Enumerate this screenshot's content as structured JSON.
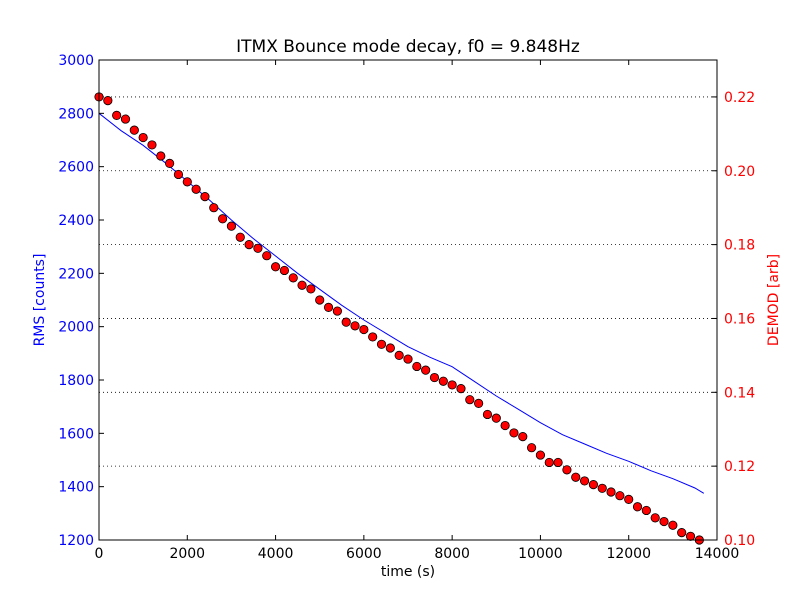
{
  "chart_data": {
    "type": "line",
    "title": "ITMX Bounce mode decay, f0 = 9.848Hz",
    "xlabel": "time (s)",
    "ylabel_left": "RMS [counts]",
    "ylabel_right": "DEMOD [arb]",
    "xlim": [
      0,
      14000
    ],
    "ylim_left": [
      1200,
      3000
    ],
    "ylim_right": [
      0.1,
      0.23
    ],
    "x_ticks": [
      0,
      2000,
      4000,
      6000,
      8000,
      10000,
      12000,
      14000
    ],
    "y_ticks_left": [
      1200,
      1400,
      1600,
      1800,
      2000,
      2200,
      2400,
      2600,
      2800,
      3000
    ],
    "y_ticks_right": [
      0.1,
      0.12,
      0.14,
      0.16,
      0.18,
      0.2,
      0.22
    ],
    "x_tick_labels": [
      "0",
      "2000",
      "4000",
      "6000",
      "8000",
      "10000",
      "12000",
      "14000"
    ],
    "y_tick_labels_left": [
      "1200",
      "1400",
      "1600",
      "1800",
      "2000",
      "2200",
      "2400",
      "2600",
      "2800",
      "3000"
    ],
    "y_tick_labels_right": [
      "0.10",
      "0.12",
      "0.14",
      "0.16",
      "0.18",
      "0.20",
      "0.22"
    ],
    "grid": "horizontal dotted lines at right-axis ticks",
    "colors": {
      "left_axis": "#0000ff",
      "right_axis": "#ff0000",
      "marker_edge": "#000000",
      "grid": "#000000"
    },
    "series": [
      {
        "axis": "left",
        "style": "line",
        "color": "#0000ff",
        "x": [
          0,
          500,
          1000,
          1500,
          2000,
          2500,
          3000,
          3500,
          4000,
          4500,
          5000,
          5500,
          6000,
          6500,
          7000,
          7500,
          8000,
          8500,
          9000,
          9500,
          10000,
          10500,
          11000,
          11500,
          12000,
          12500,
          13000,
          13500,
          13700
        ],
        "y": [
          2800,
          2735,
          2680,
          2615,
          2545,
          2475,
          2400,
          2330,
          2265,
          2200,
          2140,
          2080,
          2025,
          1975,
          1925,
          1885,
          1850,
          1795,
          1740,
          1690,
          1640,
          1595,
          1560,
          1525,
          1495,
          1460,
          1430,
          1395,
          1375
        ]
      },
      {
        "axis": "right",
        "style": "markers",
        "color": "#ff0000",
        "x": [
          0,
          200,
          400,
          600,
          800,
          1000,
          1200,
          1400,
          1600,
          1800,
          2000,
          2200,
          2400,
          2600,
          2800,
          3000,
          3200,
          3400,
          3600,
          3800,
          4000,
          4200,
          4400,
          4600,
          4800,
          5000,
          5200,
          5400,
          5600,
          5800,
          6000,
          6200,
          6400,
          6600,
          6800,
          7000,
          7200,
          7400,
          7600,
          7800,
          8000,
          8200,
          8400,
          8600,
          8800,
          9000,
          9200,
          9400,
          9600,
          9800,
          10000,
          10200,
          10400,
          10600,
          10800,
          11000,
          11200,
          11400,
          11600,
          11800,
          12000,
          12200,
          12400,
          12600,
          12800,
          13000,
          13200,
          13400,
          13600
        ],
        "y": [
          0.22,
          0.219,
          0.215,
          0.214,
          0.211,
          0.209,
          0.207,
          0.204,
          0.202,
          0.199,
          0.197,
          0.195,
          0.193,
          0.19,
          0.187,
          0.185,
          0.182,
          0.18,
          0.179,
          0.177,
          0.174,
          0.173,
          0.171,
          0.169,
          0.168,
          0.165,
          0.163,
          0.162,
          0.159,
          0.158,
          0.157,
          0.155,
          0.153,
          0.152,
          0.15,
          0.149,
          0.147,
          0.146,
          0.144,
          0.143,
          0.142,
          0.141,
          0.138,
          0.137,
          0.134,
          0.133,
          0.131,
          0.129,
          0.128,
          0.125,
          0.123,
          0.121,
          0.121,
          0.119,
          0.117,
          0.116,
          0.115,
          0.114,
          0.113,
          0.112,
          0.111,
          0.109,
          0.108,
          0.106,
          0.105,
          0.104,
          0.102,
          0.101,
          0.1
        ]
      }
    ]
  }
}
